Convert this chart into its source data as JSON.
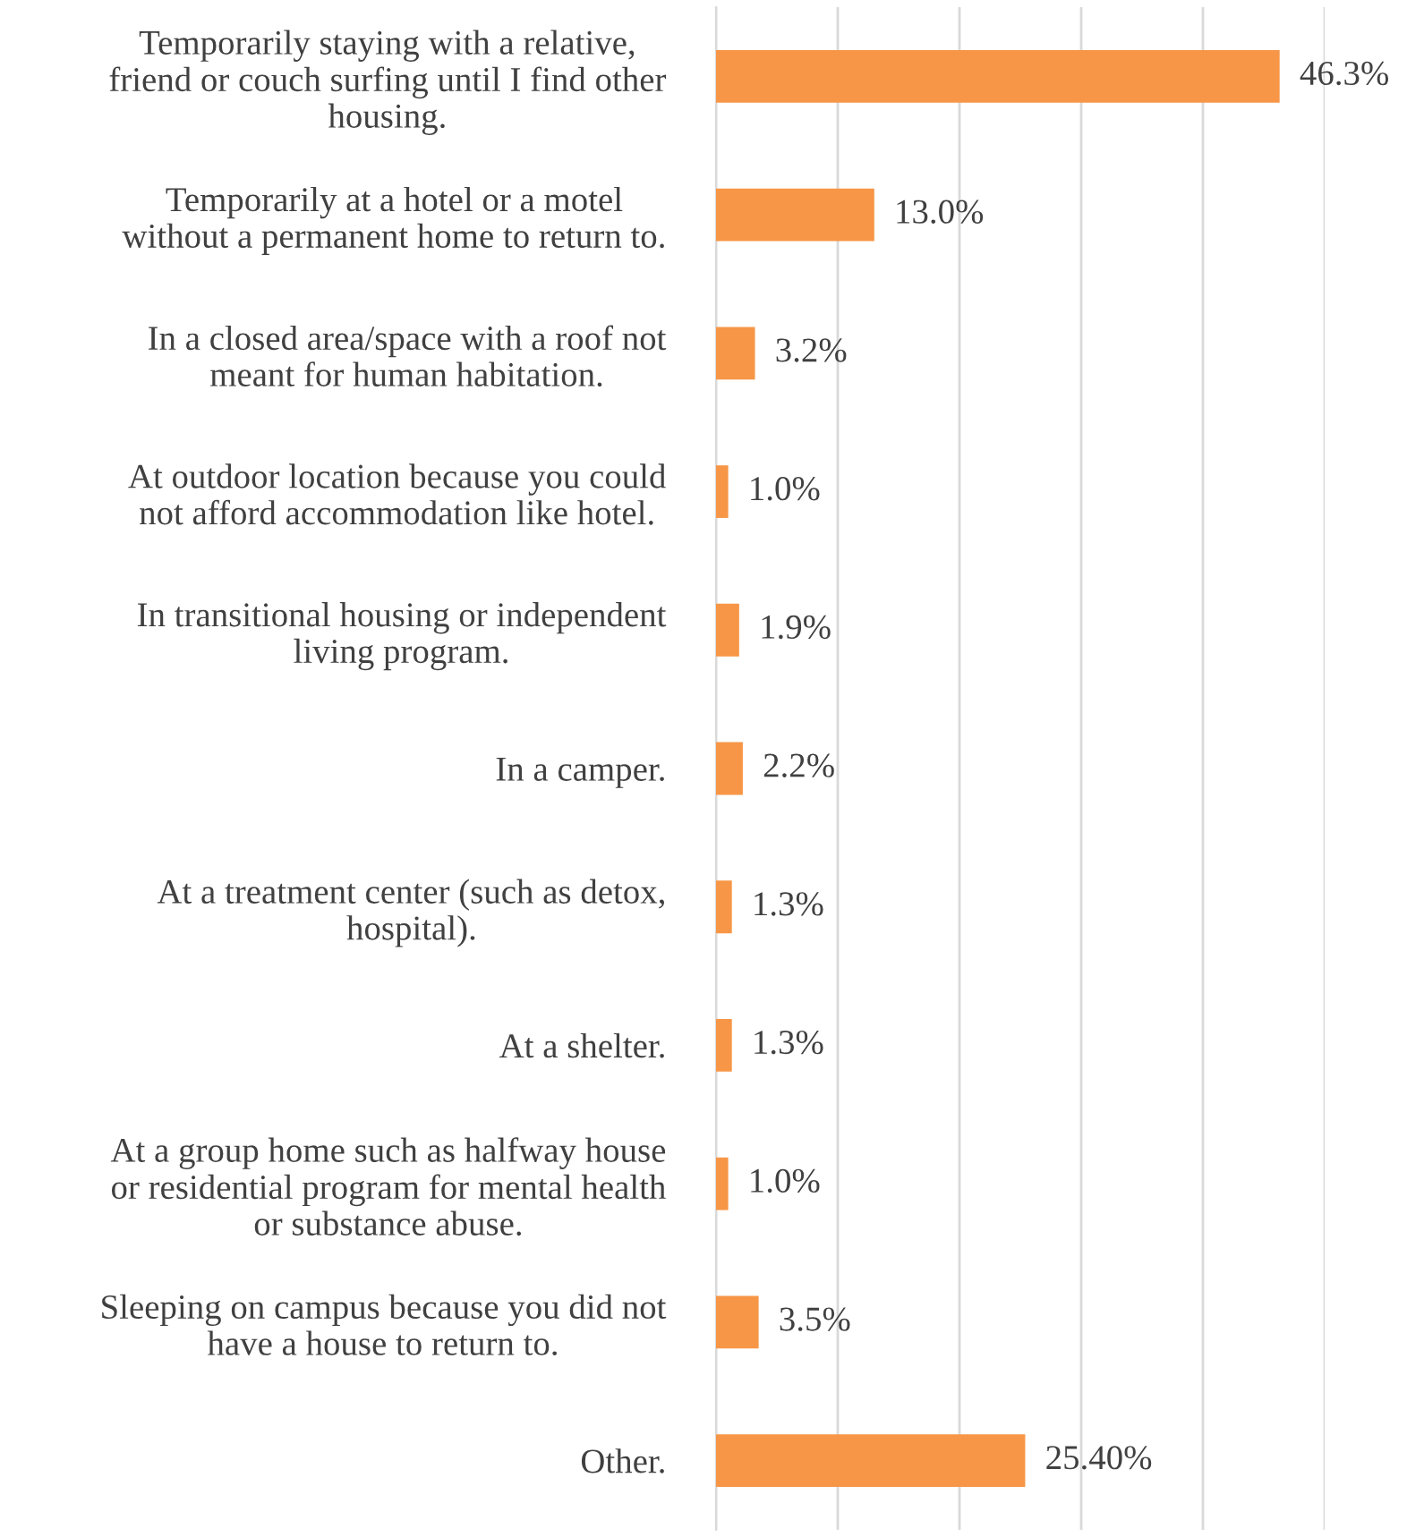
{
  "chart_data": {
    "type": "bar",
    "orientation": "horizontal",
    "categories": [
      "Temporarily staying with a relative,\nfriend or couch surfing until I find other\nhousing.",
      "Temporarily at a hotel or a motel\nwithout a permanent home to return to.",
      "In a closed area/space with a roof not\nmeant for human habitation.",
      "At outdoor location because you could\nnot afford accommodation like hotel.",
      "In transitional housing or independent\nliving program.",
      "In a camper.",
      "At a treatment center (such as detox,\nhospital).",
      "At a shelter.",
      "At a group home such as halfway house\nor residential program for mental health\nor substance abuse.",
      "Sleeping on campus because you did not\nhave a house to return to.",
      "Other."
    ],
    "values": [
      46.3,
      13.0,
      3.2,
      1.0,
      1.9,
      2.2,
      1.3,
      1.3,
      1.0,
      3.5,
      25.4
    ],
    "value_labels": [
      "46.3%",
      "13.0%",
      "3.2%",
      "1.0%",
      "1.9%",
      "2.2%",
      "1.3%",
      "1.3%",
      "1.0%",
      "3.5%",
      "25.40%"
    ],
    "color": "#f79646",
    "xlim": [
      0,
      50
    ],
    "xticks": [
      {
        "value": 0,
        "label": null
      },
      {
        "value": 10,
        "label": null
      },
      {
        "value": 20,
        "label": null
      },
      {
        "value": 30,
        "label": null
      },
      {
        "value": 40,
        "label": null
      },
      {
        "value": 50,
        "label": null
      }
    ],
    "grid": "x",
    "legend": false
  }
}
